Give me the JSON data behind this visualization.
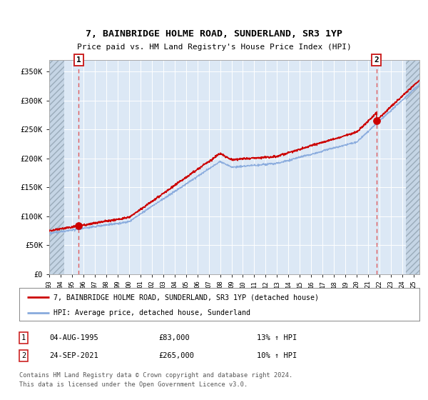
{
  "title": "7, BAINBRIDGE HOLME ROAD, SUNDERLAND, SR3 1YP",
  "subtitle": "Price paid vs. HM Land Registry's House Price Index (HPI)",
  "legend_line1": "7, BAINBRIDGE HOLME ROAD, SUNDERLAND, SR3 1YP (detached house)",
  "legend_line2": "HPI: Average price, detached house, Sunderland",
  "footer": "Contains HM Land Registry data © Crown copyright and database right 2024.\nThis data is licensed under the Open Government Licence v3.0.",
  "annotation1": {
    "num": "1",
    "date": "04-AUG-1995",
    "price": "£83,000",
    "hpi": "13% ↑ HPI"
  },
  "annotation2": {
    "num": "2",
    "date": "24-SEP-2021",
    "price": "£265,000",
    "hpi": "10% ↑ HPI"
  },
  "price_color": "#cc0000",
  "hpi_color": "#88aadd",
  "background_color": "#dce8f5",
  "ylim": [
    0,
    370000
  ],
  "yticks": [
    0,
    50000,
    100000,
    150000,
    200000,
    250000,
    300000,
    350000
  ],
  "ytick_labels": [
    "£0",
    "£50K",
    "£100K",
    "£150K",
    "£200K",
    "£250K",
    "£300K",
    "£350K"
  ],
  "sale1_x": 1995.59,
  "sale1_y": 83000,
  "sale2_x": 2021.73,
  "sale2_y": 265000,
  "xmin": 1993.0,
  "xmax": 2025.5,
  "hatch_left_end": 1994.3,
  "hatch_right_start": 2024.3
}
